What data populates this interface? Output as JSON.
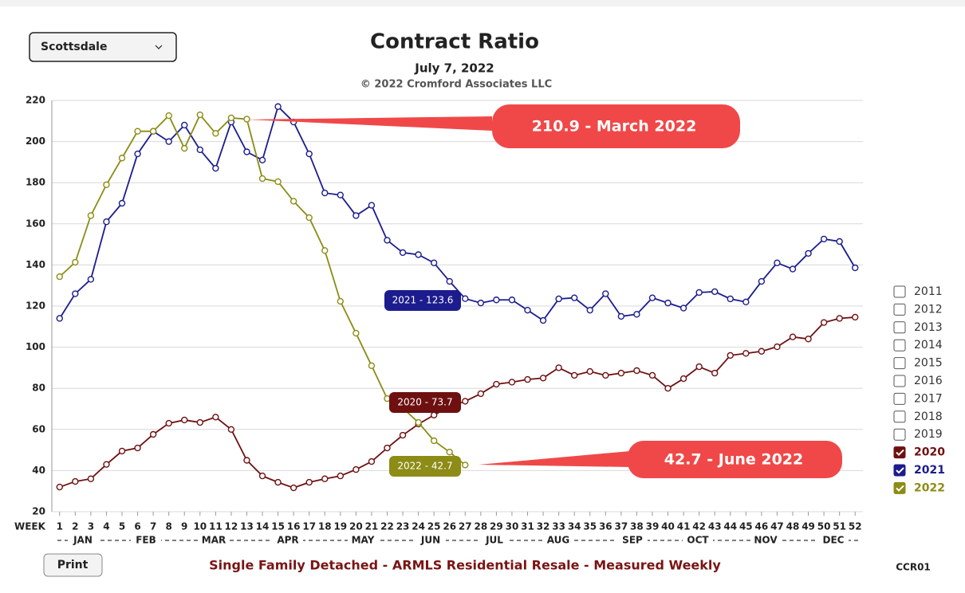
{
  "location_selector": "Scottsdale",
  "print_button": "Print",
  "page_code": "CCR01",
  "footer": "Single Family Detached - ARMLS Residential Resale - Measured Weekly",
  "legend_unchecked": [
    "2011",
    "2012",
    "2013",
    "2014",
    "2015",
    "2016",
    "2017",
    "2018",
    "2019"
  ],
  "tooltips": [
    "2021 - 123.6",
    "2020 - 73.7",
    "2022 - 42.7"
  ],
  "chart_data": {
    "type": "line",
    "title": "Contract Ratio",
    "subtitle": "July 7, 2022",
    "copyright": "© 2022 Cromford Associates LLC",
    "x_axis_label": "WEEK",
    "months": [
      "JAN",
      "FEB",
      "MAR",
      "APR",
      "MAY",
      "JUN",
      "JUL",
      "AUG",
      "SEP",
      "OCT",
      "NOV",
      "DEC"
    ],
    "annotations": [
      "210.9 - March 2022",
      "42.7 - June 2022"
    ],
    "x": [
      1,
      2,
      3,
      4,
      5,
      6,
      7,
      8,
      9,
      10,
      11,
      12,
      13,
      14,
      15,
      16,
      17,
      18,
      19,
      20,
      21,
      22,
      23,
      24,
      25,
      26,
      27,
      28,
      29,
      30,
      31,
      32,
      33,
      34,
      35,
      36,
      37,
      38,
      39,
      40,
      41,
      42,
      43,
      44,
      45,
      46,
      47,
      48,
      49,
      50,
      51,
      52
    ],
    "xlim": [
      0.5,
      52.5
    ],
    "xticks": [
      1,
      2,
      3,
      4,
      5,
      6,
      7,
      8,
      9,
      10,
      11,
      12,
      13,
      14,
      15,
      16,
      17,
      18,
      19,
      20,
      21,
      22,
      23,
      24,
      25,
      26,
      27,
      28,
      29,
      30,
      31,
      32,
      33,
      34,
      35,
      36,
      37,
      38,
      39,
      40,
      41,
      42,
      43,
      44,
      45,
      46,
      47,
      48,
      49,
      50,
      51,
      52
    ],
    "ylim": [
      20,
      220
    ],
    "yticks": [
      20,
      40,
      60,
      80,
      100,
      120,
      140,
      160,
      180,
      200,
      220
    ],
    "grid": true,
    "series": [
      {
        "name": "2020",
        "color": "#6e1010",
        "values": [
          32,
          34.7,
          36,
          43,
          49.5,
          51,
          57.6,
          63,
          64.6,
          63.4,
          66,
          60,
          45,
          37.4,
          34.3,
          31.6,
          34.3,
          36,
          37.4,
          40.5,
          44.4,
          51,
          57.2,
          62.6,
          67,
          71,
          73.7,
          77.4,
          82,
          83,
          84.3,
          85,
          90,
          86.3,
          88.2,
          86.3,
          87.4,
          88.6,
          86.3,
          80,
          84.7,
          90.5,
          87.4,
          96,
          97,
          98,
          100.2,
          105,
          104,
          112,
          114,
          114.6
        ]
      },
      {
        "name": "2021",
        "color": "#1c1c8e",
        "values": [
          114,
          126,
          133,
          161,
          170,
          194,
          205,
          200,
          208,
          196,
          187,
          209.5,
          195,
          191,
          217,
          209.5,
          194,
          175,
          174,
          164,
          169,
          152,
          146,
          145,
          141,
          132,
          123.6,
          121.5,
          123,
          123,
          118,
          113,
          123.5,
          124,
          118,
          126,
          115,
          116,
          124,
          121.5,
          119,
          126.6,
          127,
          123.5,
          122,
          132,
          141,
          138,
          145.6,
          152.6,
          151.4,
          138.6
        ]
      },
      {
        "name": "2022",
        "color": "#8c8c16",
        "values": [
          134.3,
          141.3,
          164,
          179,
          192,
          205,
          205,
          212.6,
          196.7,
          213,
          204,
          211.5,
          210.9,
          182,
          180.5,
          171,
          163,
          147,
          122.3,
          106.8,
          91,
          75,
          70.4,
          63.4,
          54.5,
          49,
          42.7,
          null,
          null,
          null,
          null,
          null,
          null,
          null,
          null,
          null,
          null,
          null,
          null,
          null,
          null,
          null,
          null,
          null,
          null,
          null,
          null,
          null,
          null,
          null,
          null,
          null
        ]
      }
    ]
  }
}
